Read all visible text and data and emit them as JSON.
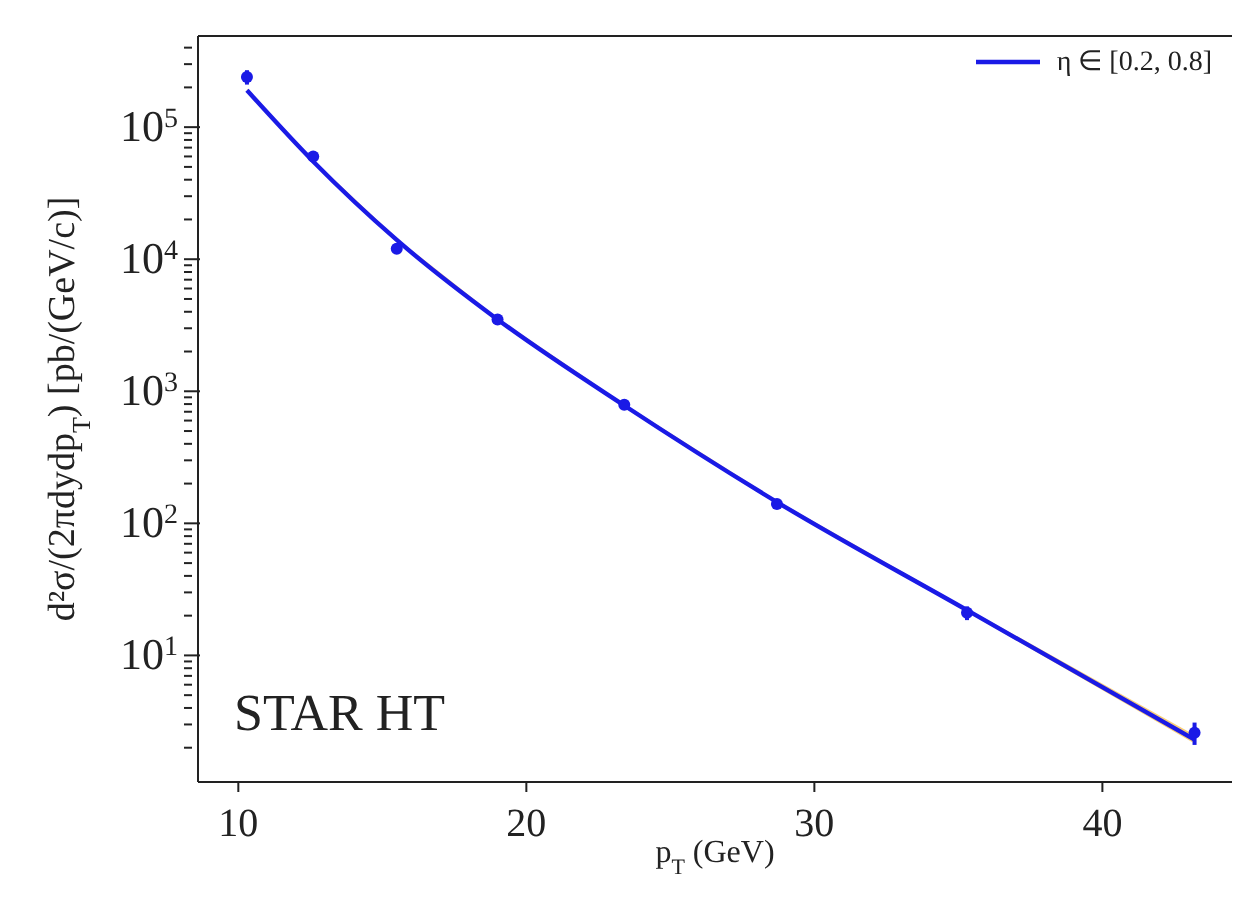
{
  "chart_data": {
    "type": "line",
    "xlabel": "p$_{T}$ (GeV)",
    "ylabel": "d²σ/(2πdydp$_{T}$) [pb/(GeV/c)]",
    "annotations": [
      "STAR HT"
    ],
    "xlim": [
      8.6,
      44.5
    ],
    "xticks": [
      10,
      20,
      30,
      40
    ],
    "ylim": [
      1.1,
      490000
    ],
    "log": "y",
    "yticks": [
      {
        "value": 2,
        "label": null
      },
      {
        "value": 3,
        "label": null
      },
      {
        "value": 4,
        "label": null
      },
      {
        "value": 5,
        "label": null
      },
      {
        "value": 6,
        "label": null
      },
      {
        "value": 7,
        "label": null
      },
      {
        "value": 8,
        "label": null
      },
      {
        "value": 9,
        "label": null
      },
      {
        "value": 10,
        "label": "10$^{1}$"
      },
      {
        "value": 20,
        "label": null
      },
      {
        "value": 30,
        "label": null
      },
      {
        "value": 40,
        "label": null
      },
      {
        "value": 50,
        "label": null
      },
      {
        "value": 60,
        "label": null
      },
      {
        "value": 70,
        "label": null
      },
      {
        "value": 80,
        "label": null
      },
      {
        "value": 90,
        "label": null
      },
      {
        "value": 100,
        "label": "10$^{2}$"
      },
      {
        "value": 200,
        "label": null
      },
      {
        "value": 300,
        "label": null
      },
      {
        "value": 400,
        "label": null
      },
      {
        "value": 500,
        "label": null
      },
      {
        "value": 600,
        "label": null
      },
      {
        "value": 700,
        "label": null
      },
      {
        "value": 800,
        "label": null
      },
      {
        "value": 900,
        "label": null
      },
      {
        "value": 1000,
        "label": "10$^{3}$"
      },
      {
        "value": 2000,
        "label": null
      },
      {
        "value": 3000,
        "label": null
      },
      {
        "value": 4000,
        "label": null
      },
      {
        "value": 5000,
        "label": null
      },
      {
        "value": 6000,
        "label": null
      },
      {
        "value": 7000,
        "label": null
      },
      {
        "value": 8000,
        "label": null
      },
      {
        "value": 9000,
        "label": null
      },
      {
        "value": 10000,
        "label": "10$^{4}$"
      },
      {
        "value": 20000,
        "label": null
      },
      {
        "value": 30000,
        "label": null
      },
      {
        "value": 40000,
        "label": null
      },
      {
        "value": 50000,
        "label": null
      },
      {
        "value": 60000,
        "label": null
      },
      {
        "value": 70000,
        "label": null
      },
      {
        "value": 80000,
        "label": null
      },
      {
        "value": 90000,
        "label": null
      },
      {
        "value": 100000,
        "label": "10$^{5}$"
      },
      {
        "value": 200000,
        "label": null
      },
      {
        "value": 300000,
        "label": null
      },
      {
        "value": 400000,
        "label": null
      }
    ],
    "grid": false,
    "legend": "top right",
    "line_style": "solid",
    "series": [
      {
        "name": "η ∈ [0.2, 0.8]",
        "color": "#1a1ae6",
        "marker": "none",
        "x": [
          10.3,
          12.6,
          15.5,
          19.0,
          23.4,
          28.7,
          35.3,
          43.2
        ],
        "values": [
          190000,
          55000,
          14000,
          3500,
          780,
          145,
          22,
          2.3
        ],
        "lower": [
          185000,
          53500,
          13600,
          3400,
          760,
          141,
          21.3,
          2.15
        ],
        "upper": [
          195000,
          56500,
          14400,
          3600,
          800,
          149,
          22.7,
          2.5
        ]
      },
      {
        "type": "scatter",
        "color": "#1a1ae6",
        "marker": "circle",
        "x": [
          10.3,
          12.6,
          15.5,
          19.0,
          23.4,
          28.7,
          35.3,
          43.2
        ],
        "values": [
          240000,
          60000,
          12000,
          3500,
          790,
          140,
          21,
          2.6
        ],
        "errors": [
          30000,
          null,
          null,
          null,
          null,
          null,
          2.5,
          0.5
        ]
      }
    ]
  }
}
